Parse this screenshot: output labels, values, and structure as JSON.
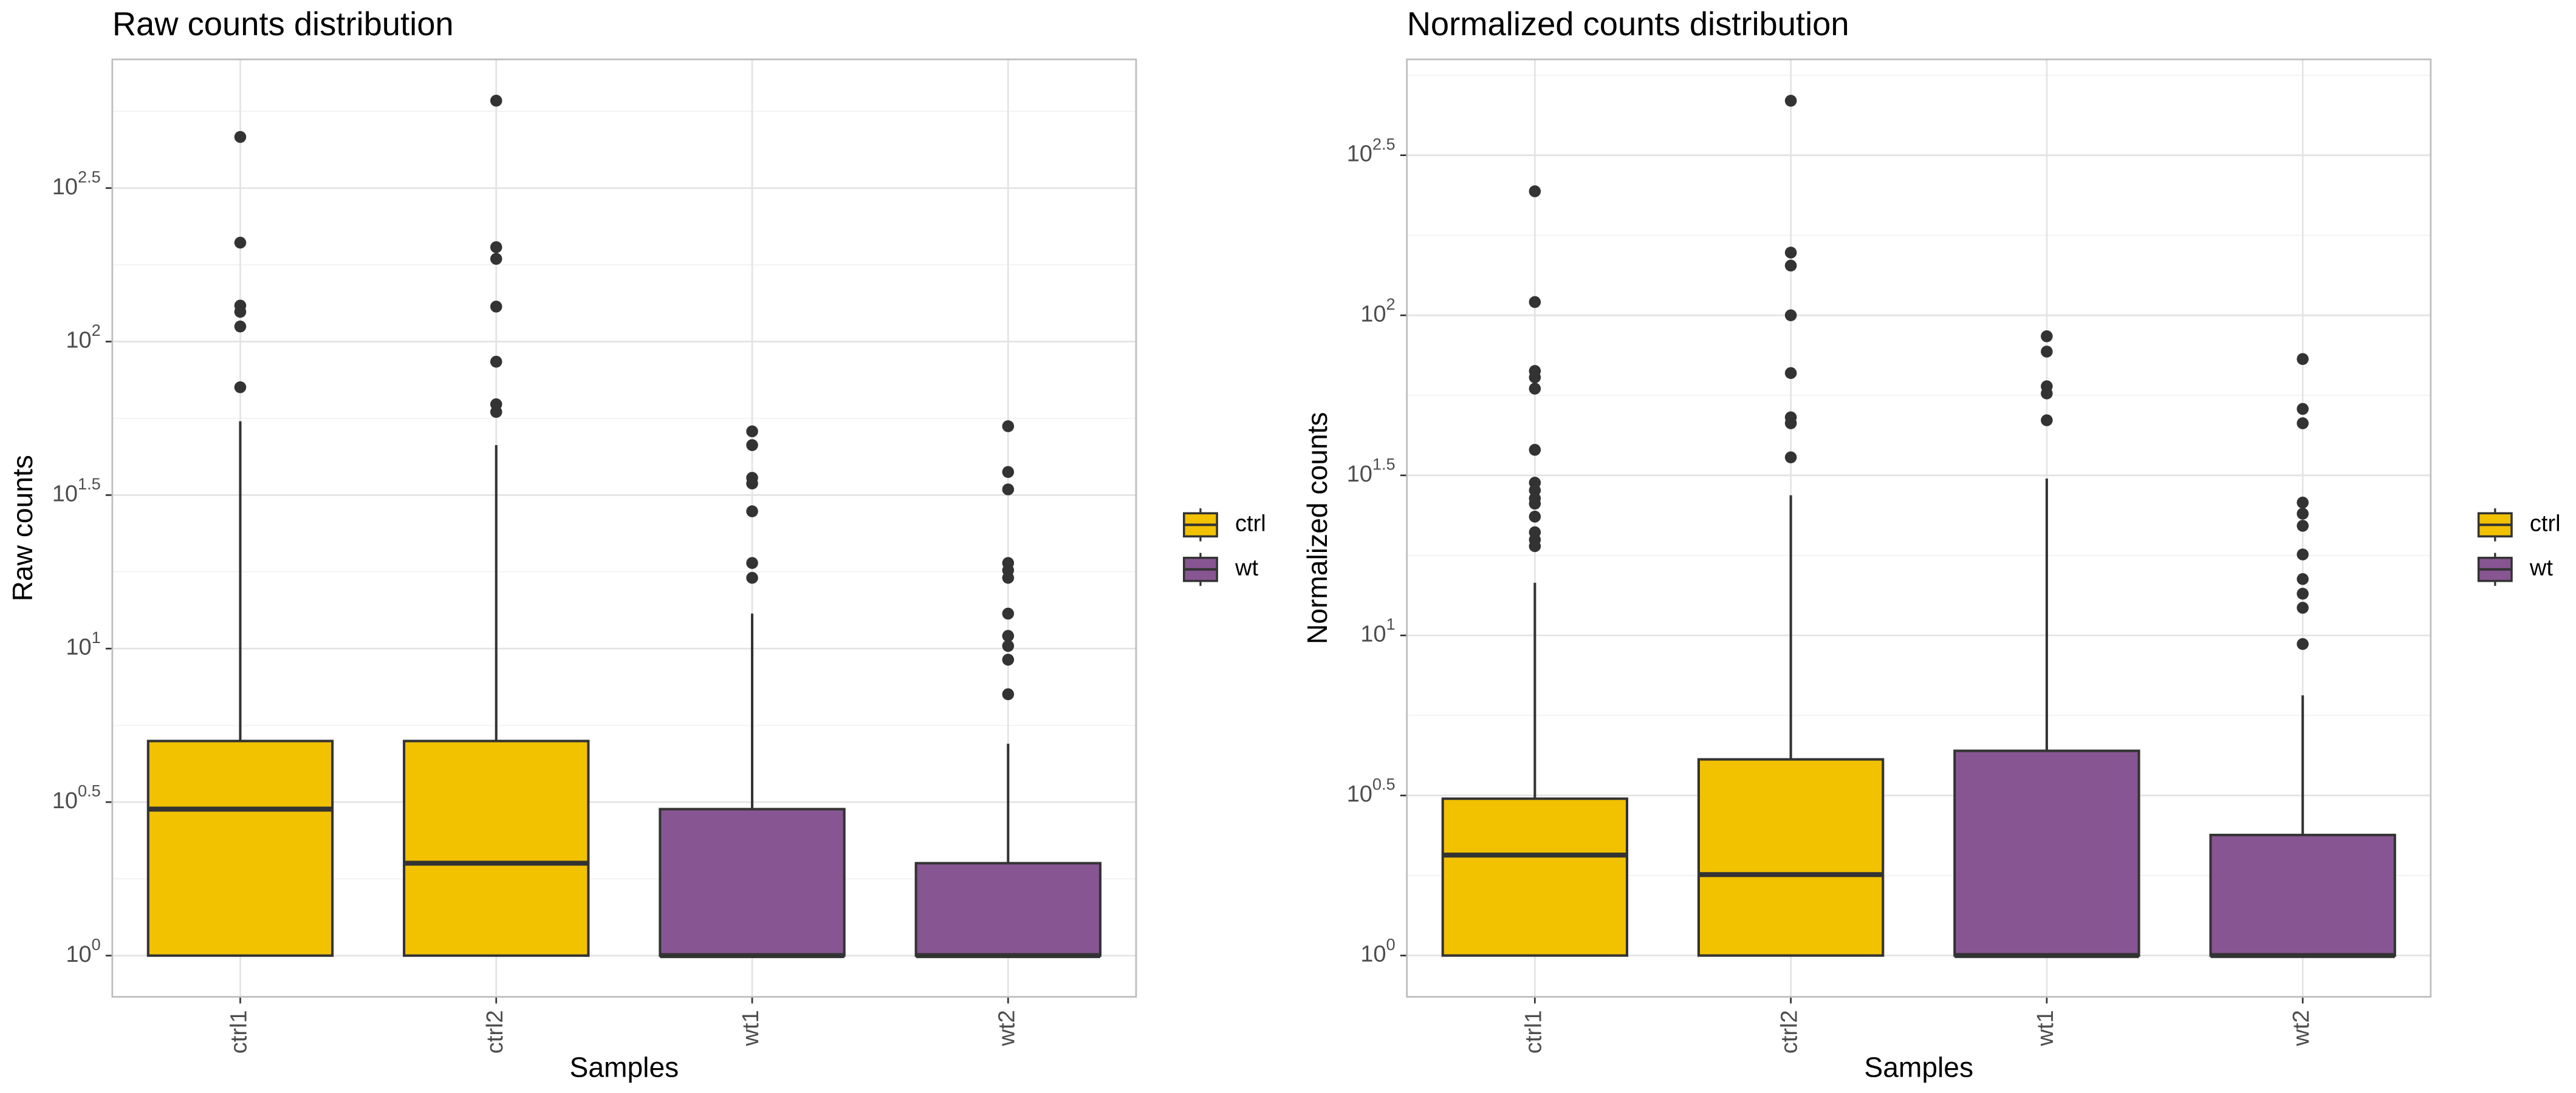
{
  "chart_data": [
    {
      "type": "box",
      "title": "Raw counts distribution",
      "x_label": "Samples",
      "y_label": "Raw counts",
      "log_scale": true,
      "grid": true,
      "categories": [
        "ctrl1",
        "ctrl2",
        "wt1",
        "wt2"
      ],
      "legend": [
        {
          "name": "ctrl",
          "color": "#f2c200"
        },
        {
          "name": "wt",
          "color": "#875692"
        }
      ],
      "boxes": [
        {
          "group": "ctrl",
          "min": 1,
          "q1": 1,
          "median": 3,
          "q3": 5,
          "max": 55,
          "outliers": [
            464,
            210,
            131,
            125,
            112,
            71
          ]
        },
        {
          "group": "ctrl",
          "min": 1,
          "q1": 1,
          "median": 2,
          "q3": 5,
          "max": 46,
          "outliers": [
            609,
            203,
            186,
            130,
            86,
            62.5,
            59
          ]
        },
        {
          "group": "wt",
          "min": 1,
          "q1": 1,
          "median": 1,
          "q3": 3,
          "max": 13,
          "outliers": [
            51,
            46,
            36,
            34.5,
            28,
            19,
            17
          ]
        },
        {
          "group": "wt",
          "min": 1,
          "q1": 1,
          "median": 1,
          "q3": 2,
          "max": 4.9,
          "outliers": [
            53,
            37.6,
            33,
            19,
            18,
            17,
            13,
            11,
            10.2,
            9.2,
            7.1
          ]
        }
      ],
      "ylim": [
        0.734,
        830
      ],
      "yticks": [
        {
          "value": 1,
          "label": "10^0"
        },
        {
          "value": 3.1623,
          "label": "10^0.5"
        },
        {
          "value": 10,
          "label": "10^1"
        },
        {
          "value": 31.623,
          "label": "10^1.5"
        },
        {
          "value": 100,
          "label": "10^2"
        },
        {
          "value": 316.23,
          "label": "10^2.5"
        }
      ]
    },
    {
      "type": "box",
      "title": "Normalized counts distribution",
      "x_label": "Samples",
      "y_label": "Normalized counts",
      "log_scale": true,
      "grid": true,
      "categories": [
        "ctrl1",
        "ctrl2",
        "wt1",
        "wt2"
      ],
      "legend": [
        {
          "name": "ctrl",
          "color": "#f2c200"
        },
        {
          "name": "wt",
          "color": "#875692"
        }
      ],
      "boxes": [
        {
          "group": "ctrl",
          "min": 1,
          "q1": 1,
          "median": 2.06,
          "q3": 3.09,
          "max": 14.6,
          "outliers": [
            244,
            110,
            67,
            64,
            59,
            38,
            30,
            28.4,
            26.8,
            25.8,
            23.5,
            21,
            19.9,
            19
          ]
        },
        {
          "group": "ctrl",
          "min": 1,
          "q1": 1,
          "median": 1.79,
          "q3": 4.1,
          "max": 27.4,
          "outliers": [
            468,
            157,
            143,
            100,
            66,
            48,
            46,
            36
          ]
        },
        {
          "group": "wt",
          "min": 1,
          "q1": 1,
          "median": 1,
          "q3": 4.36,
          "max": 30.9,
          "outliers": [
            86,
            77,
            60,
            57,
            47
          ]
        },
        {
          "group": "wt",
          "min": 1,
          "q1": 1,
          "median": 1,
          "q3": 2.38,
          "max": 6.5,
          "outliers": [
            73,
            51,
            46,
            26,
            24,
            22,
            17.9,
            15,
            13.5,
            12.2,
            9.4
          ]
        }
      ],
      "ylim": [
        0.743,
        630
      ],
      "yticks": [
        {
          "value": 1,
          "label": "10^0"
        },
        {
          "value": 3.1623,
          "label": "10^0.5"
        },
        {
          "value": 10,
          "label": "10^1"
        },
        {
          "value": 31.623,
          "label": "10^1.5"
        },
        {
          "value": 100,
          "label": "10^2"
        },
        {
          "value": 316.23,
          "label": "10^2.5"
        }
      ]
    }
  ]
}
